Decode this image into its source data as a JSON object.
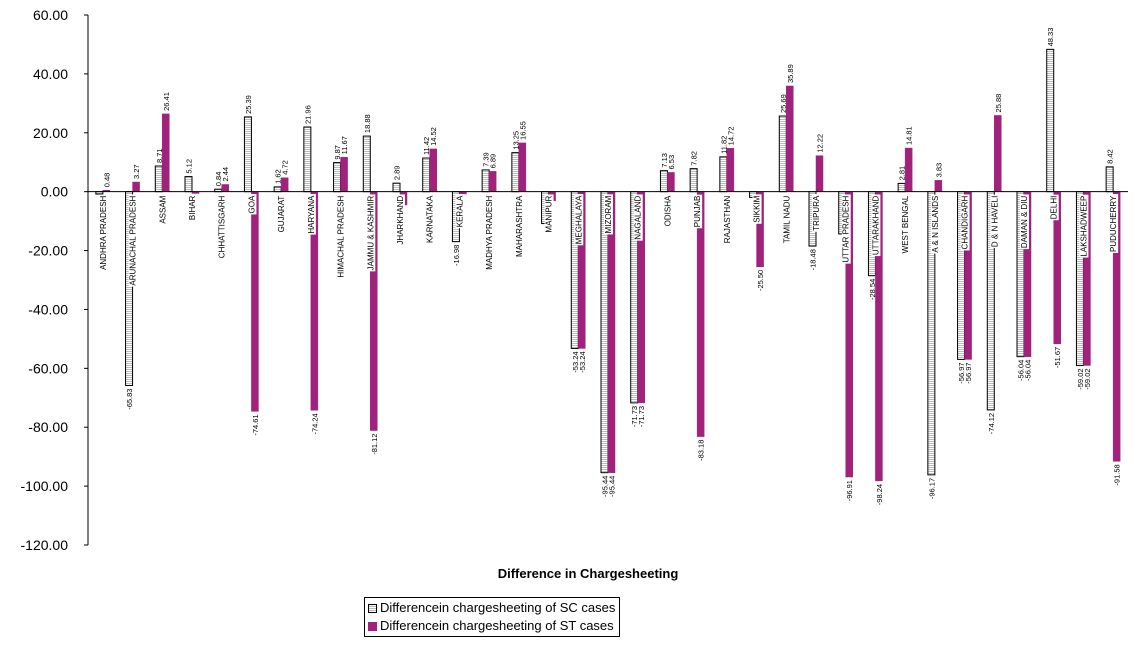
{
  "chart_data": {
    "type": "bar",
    "xlabel": "Difference in Chargesheeting",
    "ylabel": "",
    "ylim": [
      -120,
      60
    ],
    "ytick_step": 20,
    "ytick_labels": [
      "60.00",
      "40.00",
      "20.00",
      "0.00",
      "-20.00",
      "-40.00",
      "-60.00",
      "-80.00",
      "-100.00",
      "-120.00"
    ],
    "grid": false,
    "legend_position": "bottom",
    "categories": [
      "ANDHRA PRADESH",
      "ARUNACHAL PRADESH",
      "ASSAM",
      "BIHAR",
      "CHHATTISGARH",
      "GOA",
      "GUJARAT",
      "HARYANA",
      "HIMACHAL PRADESH",
      "JAMMU & KASHMIR",
      "JHARKHAND",
      "KARNATAKA",
      "KERALA",
      "MADHYA PRADESH",
      "MAHARASHTRA",
      "MANIPUR",
      "MEGHALAYA",
      "MIZORAM",
      "NAGALAND",
      "ODISHA",
      "PUNJAB",
      "RAJASTHAN",
      "SIKKIM",
      "TAMIL NADU",
      "TRIPURA",
      "UTTAR PRADESH",
      "UTTARAKHAND",
      "WEST BENGAL",
      "A & N ISLANDS",
      "CHANDIGARH",
      "D & N HAVELI",
      "DAMAN & DIU",
      "DELHI",
      "LAKSHADWEEP",
      "PUDUCHERRY"
    ],
    "series": [
      {
        "name": "Differencein chargesheeting of SC cases",
        "color": "#ffffff",
        "values": [
          -0.81,
          -65.83,
          8.71,
          5.12,
          0.84,
          25.39,
          1.62,
          21.96,
          9.87,
          18.88,
          2.89,
          11.42,
          -16.98,
          7.39,
          13.25,
          -10.83,
          -53.24,
          -95.44,
          -71.73,
          7.13,
          7.82,
          11.82,
          -1.95,
          25.69,
          -18.48,
          -14.36,
          -28.54,
          2.81,
          -96.17,
          -56.97,
          -74.12,
          -56.04,
          48.33,
          -59.02,
          8.42
        ],
        "labels": [
          "",
          "-65.83",
          "8.71",
          "5.12",
          "0.84",
          "25.39",
          "1.62",
          "21.96",
          "9.87",
          "18.88",
          "2.89",
          "11.42",
          "-16.98",
          "7.39",
          "13.25",
          "",
          "-53.24",
          "-95.44",
          "-71.73",
          "7.13",
          "7.82",
          "11.82",
          "",
          "25.69",
          "-18.48",
          "",
          "-28.54",
          "2.81",
          "-96.17",
          "-56.97",
          "-74.12",
          "-56.04",
          "48.33",
          "-59.02",
          "8.42"
        ]
      },
      {
        "name": "Differencein chargesheeting of ST cases",
        "color": "#a0227c",
        "values": [
          0.48,
          3.27,
          26.41,
          -0.6,
          2.44,
          -74.61,
          4.72,
          -74.24,
          11.67,
          -81.12,
          -4.5,
          14.52,
          -0.8,
          6.89,
          16.55,
          -3.1,
          -53.24,
          -95.44,
          -71.73,
          6.53,
          -83.18,
          14.72,
          -25.5,
          35.89,
          12.22,
          -96.91,
          -98.24,
          14.81,
          3.83,
          -56.97,
          25.88,
          -56.04,
          -51.67,
          -59.02,
          -91.58
        ],
        "labels": [
          "0.48",
          "3.27",
          "26.41",
          "",
          "2.44",
          "-74.61",
          "4.72",
          "-74.24",
          "11.67",
          "-81.12",
          "",
          "14.52",
          "",
          "6.89",
          "16.55",
          "",
          "-53.24",
          "-95.44",
          "-71.73",
          "6.53",
          "-83.18",
          "14.72",
          "-25.50",
          "35.89",
          "12.22",
          "-96.91",
          "-98.24",
          "14.81",
          "3.83",
          "-56.97",
          "25.88",
          "-56.04",
          "-51.67",
          "-59.02",
          "-91.58"
        ]
      }
    ]
  }
}
